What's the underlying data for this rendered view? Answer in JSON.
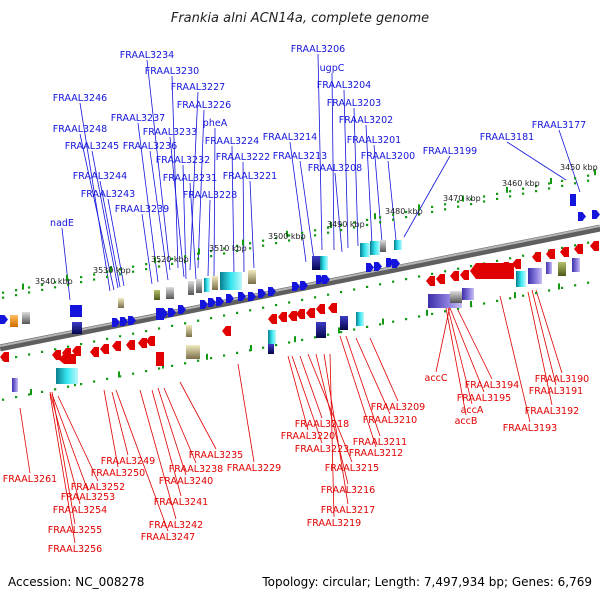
{
  "title": "Frankia alni ACN14a, complete genome",
  "footer": {
    "accession": "Accession: NC_008278",
    "summary": "Topology: circular; Length: 7,497,934 bp; Genes: 6,769"
  },
  "colors": {
    "forward": "#1414dc",
    "reverse": "#e10000",
    "backbone": "#8a8a8a",
    "tick": "#119a11"
  },
  "kbp_labels": [
    "3540 kbp",
    "3530 kbp",
    "3520 kbp",
    "3510 kbp",
    "3500 kbp",
    "3490 kbp",
    "3480 kbp",
    "3470 kbp",
    "3460 kbp",
    "3450 kbp"
  ],
  "top_labels": [
    "FRAAL3234",
    "FRAAL3230",
    "FRAAL3227",
    "FRAAL3226",
    "FRAAL3237",
    "FRAAL3233",
    "pheA",
    "FRAAL3236",
    "FRAAL3224",
    "FRAAL3232",
    "FRAAL3222",
    "FRAAL3231",
    "FRAAL3221",
    "FRAAL3228",
    "FRAAL3239",
    "FRAAL3246",
    "FRAAL3248",
    "FRAAL3245",
    "FRAAL3244",
    "FRAAL3243",
    "nadE",
    "FRAAL3206",
    "ugpC",
    "FRAAL3204",
    "FRAAL3203",
    "FRAAL3202",
    "FRAAL3214",
    "FRAAL3201",
    "FRAAL3213",
    "FRAAL3200",
    "FRAAL3208",
    "FRAAL3199",
    "FRAAL3181",
    "FRAAL3177"
  ],
  "bottom_labels": [
    "FRAAL3261",
    "FRAAL3249",
    "FRAAL3250",
    "FRAAL3252",
    "FRAAL3253",
    "FRAAL3254",
    "FRAAL3255",
    "FRAAL3256",
    "FRAAL3238",
    "FRAAL3240",
    "FRAAL3241",
    "FRAAL3242",
    "FRAAL3247",
    "FRAAL3235",
    "FRAAL3229",
    "FRAAL3218",
    "FRAAL3220",
    "FRAAL3223",
    "FRAAL3215",
    "FRAAL3216",
    "FRAAL3217",
    "FRAAL3219",
    "FRAAL3209",
    "FRAAL3210",
    "FRAAL3211",
    "FRAAL3212",
    "accC",
    "FRAAL3194",
    "FRAAL3195",
    "accA",
    "accB",
    "FRAAL3190",
    "FRAAL3191",
    "FRAAL3192",
    "FRAAL3193"
  ]
}
